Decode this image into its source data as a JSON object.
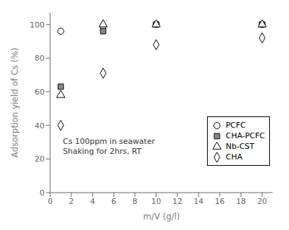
{
  "chart_data": {
    "type": "scatter",
    "xlabel": "m/V (g/l)",
    "ylabel": "Adsorption yield of Cs (%)",
    "xlim": [
      0,
      21
    ],
    "ylim": [
      0,
      107
    ],
    "xticks": [
      0,
      2,
      4,
      6,
      8,
      10,
      12,
      14,
      16,
      18,
      20
    ],
    "yticks": [
      0,
      20,
      40,
      60,
      80,
      100
    ],
    "grid": false,
    "legend": "lower right",
    "annotations": [
      {
        "text": "Cs 100ppm in seawater\nShaking for 2hrs, RT",
        "x": 1.2,
        "y": 22
      }
    ],
    "x": [
      1,
      5,
      10,
      20
    ],
    "series": [
      {
        "name": "PCFC",
        "color": "white",
        "marker": "circle",
        "values": [
          96,
          99,
          100,
          100
        ]
      },
      {
        "name": "CHA-PCFC",
        "color": "#888888",
        "marker": "square",
        "values": [
          63,
          96,
          100,
          100
        ]
      },
      {
        "name": "Nb-CST",
        "color": "white",
        "marker": "triangle",
        "values": [
          58,
          100,
          100,
          100
        ]
      },
      {
        "name": "CHA",
        "color": "white",
        "marker": "diamond",
        "values": [
          40,
          71,
          88,
          92
        ]
      }
    ]
  }
}
